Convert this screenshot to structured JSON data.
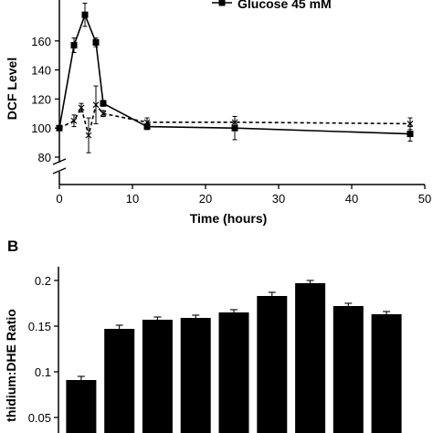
{
  "chart_data": [
    {
      "type": "line",
      "ylabel": "DCF Level",
      "xlabel": "Time (hours)",
      "xlim": [
        0,
        50
      ],
      "ylim": [
        80,
        170
      ],
      "y_axis_break": true,
      "x_ticks": [
        "0",
        "10",
        "20",
        "30",
        "40",
        "50"
      ],
      "y_ticks": [
        "80",
        "100",
        "120",
        "140",
        "160"
      ],
      "series": [
        {
          "name": "Glucose 45 mM",
          "marker": "square",
          "line": "solid",
          "x": [
            0,
            2,
            3.5,
            5,
            6,
            12,
            24,
            48
          ],
          "y": [
            100,
            157,
            178,
            159,
            117,
            101,
            100,
            96
          ],
          "err": [
            1,
            5,
            8,
            3,
            2,
            2,
            8,
            5
          ]
        },
        {
          "name": "",
          "marker": "x",
          "line": "dashed",
          "x": [
            0,
            2,
            3,
            4,
            5,
            6,
            12,
            24,
            48
          ],
          "y": [
            100,
            105,
            114,
            95,
            116,
            110,
            104,
            104,
            103
          ],
          "err": [
            1,
            4,
            3,
            12,
            13,
            2,
            3,
            4,
            4
          ]
        }
      ]
    },
    {
      "type": "bar",
      "panel_label": "B",
      "ylabel": "thidium:DHE Ratio",
      "ylim": [
        0.05,
        0.21
      ],
      "y_ticks": [
        "0.05",
        "0.1",
        "0.15",
        "0.2"
      ],
      "values": [
        0.091,
        0.147,
        0.157,
        0.159,
        0.165,
        0.183,
        0.197,
        0.172,
        0.163
      ],
      "err": [
        0.004,
        0.004,
        0.003,
        0.003,
        0.003,
        0.004,
        0.003,
        0.003,
        0.003
      ]
    }
  ]
}
